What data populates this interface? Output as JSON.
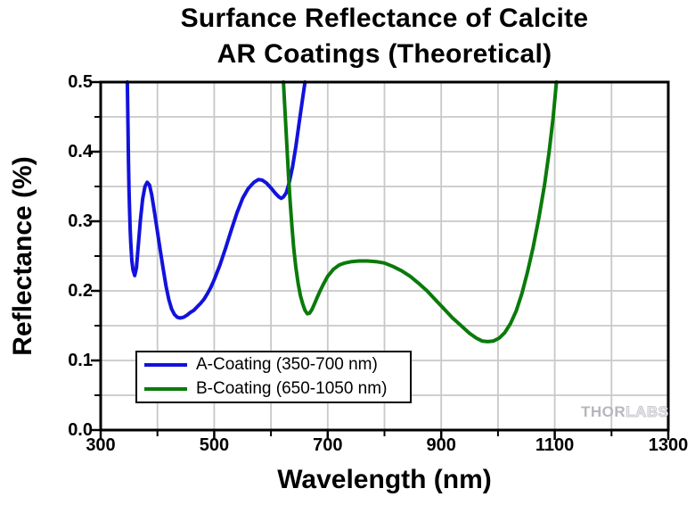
{
  "title": {
    "line1": "Surfance Reflectance of Calcite",
    "line2": "AR Coatings (Theoretical)"
  },
  "watermark": {
    "part1": "THOR",
    "part2": "LABS"
  },
  "axes": {
    "x_tick_labels": [
      "300",
      "500",
      "700",
      "900",
      "1100",
      "1300"
    ],
    "y_tick_labels": [
      "0.0",
      "0.1",
      "0.2",
      "0.3",
      "0.4",
      "0.5"
    ]
  },
  "chart_data": {
    "type": "line",
    "title": "Surfance Reflectance of Calcite AR Coatings (Theoretical)",
    "xlabel": "Wavelength (nm)",
    "ylabel": "Reflectance (%)",
    "xlim": [
      300,
      1300
    ],
    "ylim": [
      0.0,
      0.5
    ],
    "x_major_ticks": [
      300,
      500,
      700,
      900,
      1100,
      1300
    ],
    "x_minor_ticks": [
      400,
      600,
      800,
      1000,
      1200
    ],
    "y_major_ticks": [
      0.0,
      0.1,
      0.2,
      0.3,
      0.4,
      0.5
    ],
    "y_minor_ticks": [
      0.05,
      0.15,
      0.25,
      0.35,
      0.45
    ],
    "x_gridlines": [
      400,
      500,
      600,
      700,
      800,
      900,
      1000,
      1100,
      1200
    ],
    "y_gridlines": [
      0.05,
      0.1,
      0.15,
      0.2,
      0.25,
      0.3,
      0.35,
      0.4,
      0.45
    ],
    "grid": true,
    "grid_color": "#c8c8c8",
    "frame_color": "#000000",
    "legend_position": "lower-left",
    "series": [
      {
        "name": "A-Coating (350-700 nm)",
        "color": "#1212dd",
        "points": [
          [
            347,
            0.5
          ],
          [
            348,
            0.44
          ],
          [
            349,
            0.385
          ],
          [
            350,
            0.345
          ],
          [
            351,
            0.313
          ],
          [
            352,
            0.288
          ],
          [
            353,
            0.268
          ],
          [
            355,
            0.243
          ],
          [
            357,
            0.23
          ],
          [
            360,
            0.222
          ],
          [
            363,
            0.233
          ],
          [
            366,
            0.262
          ],
          [
            370,
            0.302
          ],
          [
            374,
            0.332
          ],
          [
            378,
            0.35
          ],
          [
            382,
            0.356
          ],
          [
            386,
            0.352
          ],
          [
            390,
            0.338
          ],
          [
            395,
            0.312
          ],
          [
            400,
            0.285
          ],
          [
            405,
            0.258
          ],
          [
            410,
            0.232
          ],
          [
            415,
            0.207
          ],
          [
            420,
            0.188
          ],
          [
            425,
            0.174
          ],
          [
            430,
            0.166
          ],
          [
            435,
            0.162
          ],
          [
            440,
            0.161
          ],
          [
            446,
            0.162
          ],
          [
            452,
            0.165
          ],
          [
            458,
            0.169
          ],
          [
            464,
            0.172
          ],
          [
            470,
            0.177
          ],
          [
            476,
            0.182
          ],
          [
            482,
            0.188
          ],
          [
            488,
            0.196
          ],
          [
            494,
            0.205
          ],
          [
            500,
            0.216
          ],
          [
            510,
            0.237
          ],
          [
            520,
            0.261
          ],
          [
            530,
            0.287
          ],
          [
            540,
            0.312
          ],
          [
            550,
            0.333
          ],
          [
            560,
            0.347
          ],
          [
            570,
            0.356
          ],
          [
            578,
            0.36
          ],
          [
            585,
            0.359
          ],
          [
            592,
            0.355
          ],
          [
            600,
            0.348
          ],
          [
            608,
            0.34
          ],
          [
            614,
            0.335
          ],
          [
            618,
            0.333
          ],
          [
            622,
            0.335
          ],
          [
            627,
            0.341
          ],
          [
            632,
            0.355
          ],
          [
            638,
            0.378
          ],
          [
            644,
            0.408
          ],
          [
            650,
            0.443
          ],
          [
            656,
            0.478
          ],
          [
            660,
            0.5
          ]
        ]
      },
      {
        "name": "B-Coating (650-1050 nm)",
        "color": "#0a7a0a",
        "points": [
          [
            622,
            0.5
          ],
          [
            625,
            0.455
          ],
          [
            628,
            0.41
          ],
          [
            631,
            0.365
          ],
          [
            634,
            0.325
          ],
          [
            637,
            0.292
          ],
          [
            640,
            0.262
          ],
          [
            644,
            0.233
          ],
          [
            648,
            0.21
          ],
          [
            652,
            0.193
          ],
          [
            656,
            0.181
          ],
          [
            660,
            0.172
          ],
          [
            664,
            0.167
          ],
          [
            668,
            0.168
          ],
          [
            672,
            0.173
          ],
          [
            676,
            0.18
          ],
          [
            680,
            0.188
          ],
          [
            686,
            0.199
          ],
          [
            692,
            0.209
          ],
          [
            700,
            0.221
          ],
          [
            710,
            0.231
          ],
          [
            720,
            0.237
          ],
          [
            730,
            0.24
          ],
          [
            742,
            0.242
          ],
          [
            755,
            0.243
          ],
          [
            770,
            0.243
          ],
          [
            785,
            0.242
          ],
          [
            800,
            0.24
          ],
          [
            815,
            0.235
          ],
          [
            830,
            0.229
          ],
          [
            845,
            0.221
          ],
          [
            860,
            0.211
          ],
          [
            875,
            0.2
          ],
          [
            890,
            0.187
          ],
          [
            905,
            0.174
          ],
          [
            920,
            0.161
          ],
          [
            935,
            0.15
          ],
          [
            950,
            0.139
          ],
          [
            962,
            0.132
          ],
          [
            972,
            0.128
          ],
          [
            982,
            0.127
          ],
          [
            992,
            0.128
          ],
          [
            1002,
            0.132
          ],
          [
            1012,
            0.14
          ],
          [
            1022,
            0.153
          ],
          [
            1032,
            0.171
          ],
          [
            1042,
            0.196
          ],
          [
            1052,
            0.227
          ],
          [
            1062,
            0.263
          ],
          [
            1072,
            0.305
          ],
          [
            1082,
            0.352
          ],
          [
            1090,
            0.399
          ],
          [
            1097,
            0.448
          ],
          [
            1103,
            0.5
          ]
        ]
      }
    ]
  }
}
